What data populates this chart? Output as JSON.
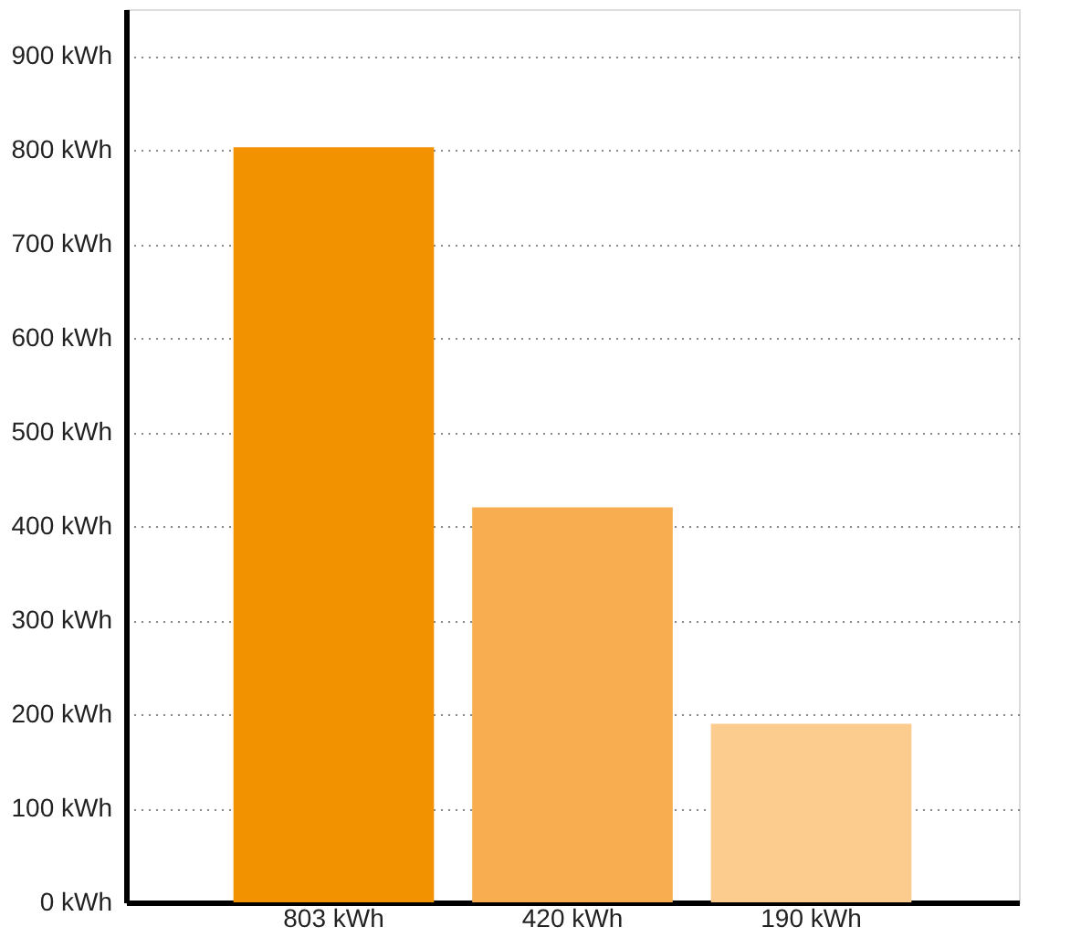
{
  "chart_data": {
    "type": "bar",
    "categories": [
      "803 kWh",
      "420 kWh",
      "190 kWh"
    ],
    "values": [
      803,
      420,
      190
    ],
    "colors": [
      "#f39200",
      "#f7ad50",
      "#fccb8e"
    ],
    "ylim": [
      0,
      950
    ],
    "yticks": [
      {
        "value": 0,
        "label": "0 kWh"
      },
      {
        "value": 100,
        "label": "100 kWh"
      },
      {
        "value": 200,
        "label": "200 kWh"
      },
      {
        "value": 300,
        "label": "300 kWh"
      },
      {
        "value": 400,
        "label": "400 kWh"
      },
      {
        "value": 500,
        "label": "500 kWh"
      },
      {
        "value": 600,
        "label": "600 kWh"
      },
      {
        "value": 700,
        "label": "700 kWh"
      },
      {
        "value": 800,
        "label": "800 kWh"
      },
      {
        "value": 900,
        "label": "900 kWh"
      }
    ],
    "grid": "y"
  }
}
